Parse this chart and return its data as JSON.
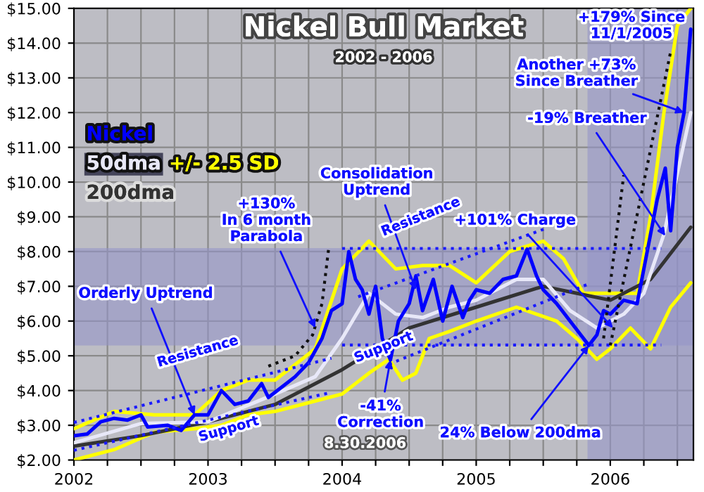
{
  "chart_data": {
    "type": "line",
    "title": "Nickel Bull Market",
    "subtitle": "2002 - 2006",
    "xlim": [
      2002,
      2006.62
    ],
    "ylim": [
      2,
      15
    ],
    "xticks": [
      2002,
      {
        "value": 2002.25,
        "label": null
      },
      {
        "value": 2002.5,
        "label": null
      },
      {
        "value": 2002.75,
        "label": null
      },
      2003,
      {
        "value": 2003.25,
        "label": null
      },
      {
        "value": 2003.5,
        "label": null
      },
      {
        "value": 2003.75,
        "label": null
      },
      2004,
      {
        "value": 2004.25,
        "label": null
      },
      {
        "value": 2004.5,
        "label": null
      },
      {
        "value": 2004.75,
        "label": null
      },
      2005,
      {
        "value": 2005.25,
        "label": null
      },
      {
        "value": 2005.5,
        "label": null
      },
      {
        "value": 2005.75,
        "label": null
      },
      2006,
      {
        "value": 2006.25,
        "label": null
      },
      {
        "value": 2006.5,
        "label": null
      }
    ],
    "yticks": [
      {
        "value": 2,
        "label": "$2.00"
      },
      {
        "value": 3,
        "label": "$3.00"
      },
      {
        "value": 4,
        "label": "$4.00"
      },
      {
        "value": 5,
        "label": "$5.00"
      },
      {
        "value": 6,
        "label": "$6.00"
      },
      {
        "value": 7,
        "label": "$7.00"
      },
      {
        "value": 8,
        "label": "$8.00"
      },
      {
        "value": 9,
        "label": "$9.00"
      },
      {
        "value": 10,
        "label": "$10.00"
      },
      {
        "value": 11,
        "label": "$11.00"
      },
      {
        "value": 12,
        "label": "$12.00"
      },
      {
        "value": 13,
        "label": "$13.00"
      },
      {
        "value": 14,
        "label": "$14.00"
      },
      {
        "value": 15,
        "label": "$15.00"
      }
    ],
    "grid": true,
    "legend": "top left",
    "bands": [
      {
        "axis": "y",
        "from": 5.3,
        "to": 8.1,
        "color": "#9494c8"
      },
      {
        "axis": "x",
        "from": 2005.83,
        "to": 2006.62,
        "color": "#9494c8"
      }
    ],
    "series": [
      {
        "name": "+/- 2.5 SD",
        "color": "#ffff00",
        "x": [
          2002,
          2002.3,
          2002.6,
          2002.9,
          2003.1,
          2003.3,
          2003.5,
          2003.8,
          2004.0,
          2004.2,
          2004.4,
          2004.6,
          2004.8,
          2005.0,
          2005.25,
          2005.5,
          2005.65,
          2005.8,
          2006.0,
          2006.2,
          2006.3,
          2006.4,
          2006.5,
          2006.6
        ],
        "values": [
          2.9,
          3.4,
          3.3,
          3.3,
          4.0,
          4.3,
          4.3,
          5.2,
          7.5,
          8.3,
          7.5,
          7.6,
          7.6,
          7.1,
          8.0,
          8.3,
          7.8,
          6.8,
          6.8,
          6.8,
          9.0,
          12.0,
          14.5,
          15.0
        ]
      },
      {
        "color": "#ffff00",
        "x": [
          2002,
          2002.3,
          2002.6,
          2002.9,
          2003.1,
          2003.3,
          2003.5,
          2003.8,
          2004.0,
          2004.2,
          2004.35,
          2004.45,
          2004.55,
          2004.65,
          2004.8,
          2005.0,
          2005.3,
          2005.6,
          2005.75,
          2005.9,
          2006.0,
          2006.15,
          2006.3,
          2006.45,
          2006.6
        ],
        "values": [
          2.0,
          2.3,
          2.8,
          2.9,
          3.0,
          3.3,
          3.4,
          3.7,
          3.9,
          4.5,
          4.9,
          4.3,
          4.5,
          5.5,
          5.7,
          6.0,
          6.4,
          6.0,
          5.5,
          4.9,
          5.2,
          5.8,
          5.2,
          6.4,
          7.1
        ]
      },
      {
        "name": "200dma",
        "color": "#333333",
        "x": [
          2002,
          2002.5,
          2003.0,
          2003.5,
          2004.0,
          2004.5,
          2005.0,
          2005.5,
          2005.75,
          2006.0,
          2006.3,
          2006.6
        ],
        "values": [
          2.4,
          2.7,
          3.1,
          3.6,
          4.6,
          5.8,
          6.4,
          7.0,
          6.8,
          6.6,
          7.2,
          8.7
        ]
      },
      {
        "name": "50dma",
        "color": "#e8e8f8",
        "x": [
          2002,
          2002.5,
          2003,
          2003.5,
          2003.8,
          2004.0,
          2004.2,
          2004.4,
          2004.6,
          2004.8,
          2005.0,
          2005.3,
          2005.5,
          2005.7,
          2005.9,
          2006.1,
          2006.25,
          2006.4,
          2006.6
        ],
        "values": [
          2.5,
          3.05,
          3.1,
          3.9,
          4.4,
          5.5,
          6.8,
          6.2,
          6.1,
          6.4,
          6.6,
          7.2,
          7.2,
          6.3,
          5.8,
          6.2,
          6.8,
          8.5,
          12.0
        ]
      },
      {
        "name": "Nickel",
        "color": "#0000ff",
        "x": [
          2002.0,
          2002.1,
          2002.2,
          2002.3,
          2002.4,
          2002.5,
          2002.55,
          2002.7,
          2002.8,
          2002.9,
          2003.0,
          2003.1,
          2003.2,
          2003.3,
          2003.4,
          2003.45,
          2003.55,
          2003.65,
          2003.75,
          2003.85,
          2003.92,
          2004.0,
          2004.05,
          2004.1,
          2004.15,
          2004.2,
          2004.25,
          2004.3,
          2004.36,
          2004.42,
          2004.5,
          2004.55,
          2004.6,
          2004.68,
          2004.75,
          2004.82,
          2004.9,
          2004.95,
          2005.0,
          2005.1,
          2005.2,
          2005.3,
          2005.38,
          2005.45,
          2005.5,
          2005.6,
          2005.7,
          2005.8,
          2005.84,
          2005.9,
          2005.95,
          2006.0,
          2006.1,
          2006.2,
          2006.25,
          2006.3,
          2006.35,
          2006.41,
          2006.45,
          2006.5,
          2006.55,
          2006.6
        ],
        "values": [
          2.7,
          2.75,
          3.1,
          3.2,
          3.15,
          3.3,
          2.95,
          3.0,
          2.85,
          3.3,
          3.3,
          4.0,
          3.6,
          3.7,
          4.2,
          3.8,
          4.1,
          4.4,
          4.8,
          5.5,
          6.3,
          6.5,
          8.0,
          7.2,
          6.9,
          6.2,
          7.0,
          5.5,
          4.88,
          6.0,
          6.5,
          7.3,
          6.3,
          7.2,
          6.0,
          7.0,
          6.1,
          6.6,
          6.9,
          6.8,
          7.2,
          7.3,
          8.07,
          7.3,
          6.9,
          6.5,
          6.0,
          5.5,
          5.3,
          5.6,
          6.3,
          6.2,
          6.6,
          6.5,
          7.5,
          8.5,
          9.5,
          10.4,
          8.6,
          11.0,
          12.0,
          14.4
        ]
      },
      {
        "color": "#1a1aff",
        "line_style": "dotted",
        "x": [
          2002,
          2003.92
        ],
        "values": [
          3.08,
          4.93
        ]
      },
      {
        "color": "#1a1aff",
        "line_style": "dotted",
        "x": [
          2002,
          2003.89
        ],
        "values": [
          2.28,
          3.92
        ]
      },
      {
        "color": "#1a1aff",
        "line_style": "dotted",
        "x": [
          2004.12,
          2005.53
        ],
        "values": [
          6.7,
          8.68
        ]
      },
      {
        "color": "#1a1aff",
        "line_style": "dotted",
        "x": [
          2004.35,
          2005.84
        ],
        "values": [
          4.76,
          7.07
        ]
      },
      {
        "color": "#1a1aff",
        "line_style": "dotted",
        "x": [
          2004.0,
          2006.38
        ],
        "values": [
          8.09,
          8.09
        ]
      },
      {
        "color": "#1a1aff",
        "line_style": "dotted",
        "x": [
          2004.0,
          2006.38
        ],
        "values": [
          5.31,
          5.31
        ]
      },
      {
        "color": "#111111",
        "line_style": "dotted",
        "x": [
          2003.45,
          2003.65,
          2003.78,
          2003.85,
          2003.9
        ],
        "values": [
          4.7,
          5.0,
          5.6,
          6.5,
          8.1
        ]
      },
      {
        "color": "#111111",
        "line_style": "dotted",
        "x": [
          2005.95,
          2006.1
        ],
        "values": [
          5.5,
          10.2
        ]
      },
      {
        "color": "#111111",
        "line_style": "dotted",
        "x": [
          2006.0,
          2006.45
        ],
        "values": [
          5.3,
          13.75
        ]
      }
    ],
    "annotations": [
      {
        "text": "Orderly Uptrend",
        "x": 2002.9,
        "y": 3.3
      },
      "Resistance",
      "Support",
      {
        "text": "+130%\nIn 6 month\nParabola",
        "x": 2003.8,
        "y": 5.8
      },
      {
        "text": "Consolidation\nUptrend",
        "x": 2004.55,
        "y": 6.9
      },
      "Resistance",
      "Support",
      {
        "text": "-41%\nCorrection",
        "x": 2004.36,
        "y": 4.88
      },
      {
        "text": "+101% Charge",
        "x": 2006.02,
        "y": 5.8
      },
      {
        "text": "-19% Breather",
        "x": 2006.41,
        "y": 8.45
      },
      {
        "text": "Another +73%\nSince Breather",
        "x": 2006.55,
        "y": 12.0
      },
      "+179% Since\n11/1/2005",
      {
        "text": "24% Below 200dma",
        "x": 2005.84,
        "y": 5.3
      },
      "8.30.2006"
    ]
  }
}
